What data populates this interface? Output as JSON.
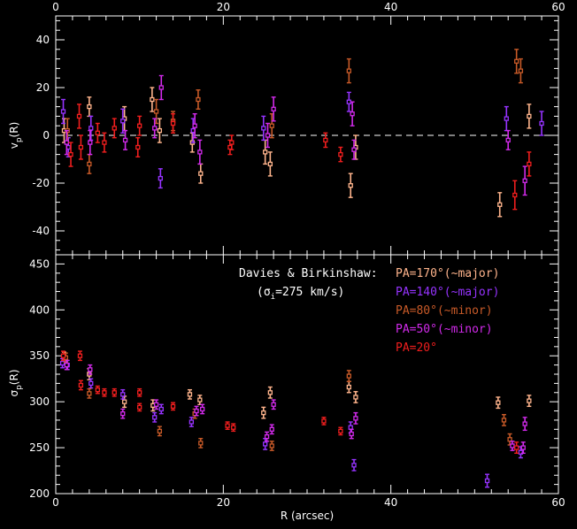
{
  "chart_data": [
    {
      "type": "scatter",
      "panel": "top",
      "ylabel": "v_p(R)",
      "xlim": [
        0,
        60
      ],
      "ylim": [
        -50,
        50
      ],
      "yticks": [
        -40,
        -20,
        0,
        20,
        40
      ],
      "xticks_top": [
        0,
        20,
        40,
        60
      ],
      "zero_line": true,
      "series": [
        {
          "name": "PA=170°(~major)",
          "color": "#ffb48c",
          "points": [
            {
              "x": 1.0,
              "y": 2,
              "err": 5
            },
            {
              "x": 4.0,
              "y": 12,
              "err": 4
            },
            {
              "x": 8.2,
              "y": 7,
              "err": 5
            },
            {
              "x": 11.5,
              "y": 15,
              "err": 5
            },
            {
              "x": 12.4,
              "y": 2,
              "err": 5
            },
            {
              "x": 16.3,
              "y": -3,
              "err": 4
            },
            {
              "x": 17.3,
              "y": -16,
              "err": 4
            },
            {
              "x": 25.0,
              "y": -7,
              "err": 5
            },
            {
              "x": 25.6,
              "y": -12,
              "err": 5
            },
            {
              "x": 35.2,
              "y": -21,
              "err": 5
            },
            {
              "x": 35.8,
              "y": -5,
              "err": 5
            },
            {
              "x": 53.0,
              "y": -29,
              "err": 5
            },
            {
              "x": 56.5,
              "y": 8,
              "err": 5
            }
          ]
        },
        {
          "name": "PA=140°(~major)",
          "color": "#9633ff",
          "points": [
            {
              "x": 0.9,
              "y": 10,
              "err": 5
            },
            {
              "x": 1.5,
              "y": -5,
              "err": 4
            },
            {
              "x": 4.2,
              "y": 3,
              "err": 5
            },
            {
              "x": 8.0,
              "y": 6,
              "err": 5
            },
            {
              "x": 12.5,
              "y": -18,
              "err": 4
            },
            {
              "x": 16.4,
              "y": 2,
              "err": 5
            },
            {
              "x": 24.8,
              "y": 3,
              "err": 5
            },
            {
              "x": 35.0,
              "y": 14,
              "err": 4
            },
            {
              "x": 53.8,
              "y": 7,
              "err": 5
            },
            {
              "x": 58.0,
              "y": 5,
              "err": 5
            }
          ]
        },
        {
          "name": "PA=80°(~minor)",
          "color": "#c85a28",
          "points": [
            {
              "x": 1.4,
              "y": 2,
              "err": 5
            },
            {
              "x": 4.0,
              "y": -12,
              "err": 4
            },
            {
              "x": 12.0,
              "y": 10,
              "err": 5
            },
            {
              "x": 14.0,
              "y": 6,
              "err": 4
            },
            {
              "x": 17.0,
              "y": 15,
              "err": 4
            },
            {
              "x": 25.8,
              "y": 4,
              "err": 5
            },
            {
              "x": 35.0,
              "y": 27,
              "err": 5
            },
            {
              "x": 55.0,
              "y": 31,
              "err": 5
            },
            {
              "x": 55.5,
              "y": 27,
              "err": 5
            }
          ]
        },
        {
          "name": "PA=50°(~minor)",
          "color": "#d22aeb",
          "points": [
            {
              "x": 1.3,
              "y": -3,
              "err": 5
            },
            {
              "x": 4.1,
              "y": -3,
              "err": 5
            },
            {
              "x": 8.3,
              "y": -2,
              "err": 4
            },
            {
              "x": 11.8,
              "y": 3,
              "err": 4
            },
            {
              "x": 12.6,
              "y": 20,
              "err": 5
            },
            {
              "x": 16.6,
              "y": 4,
              "err": 5
            },
            {
              "x": 17.2,
              "y": -7,
              "err": 5
            },
            {
              "x": 25.3,
              "y": 0,
              "err": 5
            },
            {
              "x": 26.0,
              "y": 11,
              "err": 5
            },
            {
              "x": 35.4,
              "y": 9,
              "err": 5
            },
            {
              "x": 35.6,
              "y": -6,
              "err": 4
            },
            {
              "x": 54.0,
              "y": -2,
              "err": 4
            },
            {
              "x": 56.0,
              "y": -19,
              "err": 6
            }
          ]
        },
        {
          "name": "PA=20°",
          "color": "#f01e1e",
          "points": [
            {
              "x": 1.8,
              "y": -8,
              "err": 5
            },
            {
              "x": 2.8,
              "y": 8,
              "err": 5
            },
            {
              "x": 3.0,
              "y": -5,
              "err": 5
            },
            {
              "x": 5.0,
              "y": 1,
              "err": 4
            },
            {
              "x": 5.8,
              "y": -3,
              "err": 4
            },
            {
              "x": 7.0,
              "y": 3,
              "err": 4
            },
            {
              "x": 9.8,
              "y": -5,
              "err": 4
            },
            {
              "x": 10.0,
              "y": 4,
              "err": 4
            },
            {
              "x": 14.0,
              "y": 5,
              "err": 4
            },
            {
              "x": 20.8,
              "y": -5,
              "err": 3
            },
            {
              "x": 21.0,
              "y": -3,
              "err": 3
            },
            {
              "x": 32.2,
              "y": -2,
              "err": 3
            },
            {
              "x": 34.0,
              "y": -8,
              "err": 3
            },
            {
              "x": 54.8,
              "y": -25,
              "err": 6
            },
            {
              "x": 56.5,
              "y": -12,
              "err": 5
            }
          ]
        }
      ]
    },
    {
      "type": "scatter",
      "panel": "bottom",
      "xlabel": "R (arcsec)",
      "ylabel": "σ_p(R)",
      "xlim": [
        0,
        60
      ],
      "ylim": [
        200,
        460
      ],
      "yticks": [
        200,
        250,
        300,
        350,
        400,
        450
      ],
      "xticks": [
        0,
        20,
        40,
        60
      ],
      "series": [
        {
          "name": "PA=170°(~major)",
          "color": "#ffb48c",
          "points": [
            {
              "x": 1.0,
              "y": 348,
              "err": 6
            },
            {
              "x": 4.0,
              "y": 330,
              "err": 6
            },
            {
              "x": 8.2,
              "y": 300,
              "err": 6
            },
            {
              "x": 11.6,
              "y": 296,
              "err": 6
            },
            {
              "x": 16.0,
              "y": 308,
              "err": 5
            },
            {
              "x": 17.2,
              "y": 302,
              "err": 5
            },
            {
              "x": 24.8,
              "y": 288,
              "err": 6
            },
            {
              "x": 25.6,
              "y": 310,
              "err": 6
            },
            {
              "x": 35.0,
              "y": 316,
              "err": 6
            },
            {
              "x": 35.8,
              "y": 305,
              "err": 6
            },
            {
              "x": 52.8,
              "y": 299,
              "err": 6
            },
            {
              "x": 56.5,
              "y": 301,
              "err": 6
            }
          ]
        },
        {
          "name": "PA=140°(~major)",
          "color": "#9633ff",
          "points": [
            {
              "x": 0.8,
              "y": 342,
              "err": 5
            },
            {
              "x": 1.4,
              "y": 340,
              "err": 5
            },
            {
              "x": 4.2,
              "y": 320,
              "err": 5
            },
            {
              "x": 8.0,
              "y": 308,
              "err": 5
            },
            {
              "x": 11.8,
              "y": 283,
              "err": 5
            },
            {
              "x": 12.6,
              "y": 292,
              "err": 5
            },
            {
              "x": 16.2,
              "y": 278,
              "err": 5
            },
            {
              "x": 25.0,
              "y": 254,
              "err": 6
            },
            {
              "x": 35.2,
              "y": 272,
              "err": 6
            },
            {
              "x": 35.6,
              "y": 231,
              "err": 6
            },
            {
              "x": 51.5,
              "y": 214,
              "err": 7
            },
            {
              "x": 55.5,
              "y": 245,
              "err": 6
            }
          ]
        },
        {
          "name": "PA=80°(~minor)",
          "color": "#c85a28",
          "points": [
            {
              "x": 1.2,
              "y": 348,
              "err": 5
            },
            {
              "x": 4.0,
              "y": 309,
              "err": 5
            },
            {
              "x": 12.4,
              "y": 268,
              "err": 5
            },
            {
              "x": 16.6,
              "y": 287,
              "err": 5
            },
            {
              "x": 17.3,
              "y": 255,
              "err": 5
            },
            {
              "x": 25.8,
              "y": 252,
              "err": 5
            },
            {
              "x": 35.0,
              "y": 328,
              "err": 6
            },
            {
              "x": 53.5,
              "y": 280,
              "err": 6
            },
            {
              "x": 54.2,
              "y": 259,
              "err": 6
            }
          ]
        },
        {
          "name": "PA=50°(~minor)",
          "color": "#d22aeb",
          "points": [
            {
              "x": 1.3,
              "y": 340,
              "err": 5
            },
            {
              "x": 4.1,
              "y": 335,
              "err": 5
            },
            {
              "x": 8.0,
              "y": 287,
              "err": 5
            },
            {
              "x": 12.0,
              "y": 297,
              "err": 5
            },
            {
              "x": 16.8,
              "y": 290,
              "err": 5
            },
            {
              "x": 17.5,
              "y": 292,
              "err": 5
            },
            {
              "x": 25.2,
              "y": 262,
              "err": 5
            },
            {
              "x": 25.8,
              "y": 270,
              "err": 5
            },
            {
              "x": 26.0,
              "y": 297,
              "err": 5
            },
            {
              "x": 35.3,
              "y": 265,
              "err": 5
            },
            {
              "x": 35.8,
              "y": 282,
              "err": 6
            },
            {
              "x": 54.5,
              "y": 252,
              "err": 5
            },
            {
              "x": 56.0,
              "y": 276,
              "err": 7
            },
            {
              "x": 55.8,
              "y": 250,
              "err": 6
            }
          ]
        },
        {
          "name": "PA=20°",
          "color": "#f01e1e",
          "points": [
            {
              "x": 0.9,
              "y": 350,
              "err": 5
            },
            {
              "x": 2.9,
              "y": 350,
              "err": 5
            },
            {
              "x": 3.0,
              "y": 318,
              "err": 5
            },
            {
              "x": 5.0,
              "y": 313,
              "err": 4
            },
            {
              "x": 5.8,
              "y": 310,
              "err": 4
            },
            {
              "x": 7.0,
              "y": 310,
              "err": 4
            },
            {
              "x": 10.0,
              "y": 310,
              "err": 4
            },
            {
              "x": 10.0,
              "y": 294,
              "err": 4
            },
            {
              "x": 14.0,
              "y": 295,
              "err": 4
            },
            {
              "x": 20.5,
              "y": 274,
              "err": 4
            },
            {
              "x": 21.2,
              "y": 272,
              "err": 4
            },
            {
              "x": 32.0,
              "y": 279,
              "err": 4
            },
            {
              "x": 34.0,
              "y": 268,
              "err": 4
            },
            {
              "x": 55.0,
              "y": 250,
              "err": 6
            }
          ]
        }
      ]
    }
  ],
  "legend": {
    "source_line1": "Davies & Birkinshaw:",
    "source_line2": "(σ",
    "source_sub": "i",
    "source_line2_rest": "=275 km/s)",
    "entries": [
      {
        "label": "PA=170°(~major)",
        "color": "#ffb48c"
      },
      {
        "label": "PA=140°(~major)",
        "color": "#9633ff"
      },
      {
        "label": "PA=80°(~minor)",
        "color": "#c85a28"
      },
      {
        "label": "PA=50°(~minor)",
        "color": "#d22aeb"
      },
      {
        "label": "PA=20°",
        "color": "#f01e1e"
      }
    ]
  },
  "labels": {
    "top_y_main": "v",
    "top_y_sub": "p",
    "top_y_rest": "(R)",
    "bottom_y_main": "σ",
    "bottom_y_sub": "p",
    "bottom_y_rest": "(R)",
    "x_label": "R (arcsec)"
  },
  "styles": {
    "axis_color": "#ffffff",
    "background": "#000000",
    "zero_line_color": "#ffffff"
  }
}
